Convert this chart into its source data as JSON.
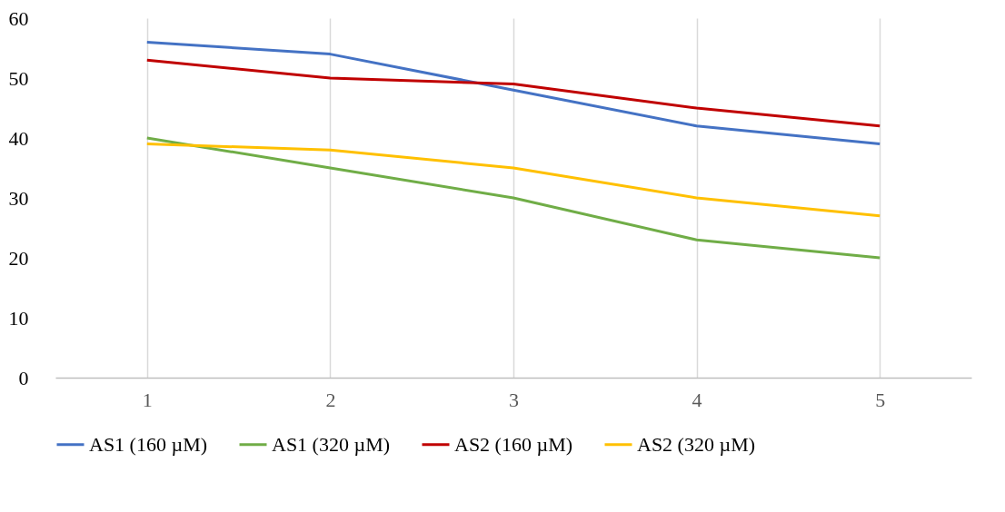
{
  "chart_data": {
    "type": "line",
    "categories": [
      "1",
      "2",
      "3",
      "4",
      "5"
    ],
    "ylim": [
      0,
      60
    ],
    "yticks": [
      0,
      10,
      20,
      30,
      40,
      50,
      60
    ],
    "grid": "x",
    "legend": "bottom",
    "marker": "none",
    "line_style": "solid",
    "series": [
      {
        "name": "AS1 (160 µM)",
        "color": "#4472c4",
        "values": [
          56,
          54,
          48,
          42,
          39
        ]
      },
      {
        "name": "AS1 (320 µM)",
        "color": "#70ad47",
        "values": [
          40,
          35,
          30,
          23,
          20
        ]
      },
      {
        "name": "AS2 (160 µM)",
        "color": "#c00000",
        "values": [
          53,
          50,
          49,
          45,
          42
        ]
      },
      {
        "name": "AS2 (320 µM)",
        "color": "#ffc000",
        "values": [
          39,
          38,
          35,
          30,
          27
        ]
      }
    ]
  }
}
